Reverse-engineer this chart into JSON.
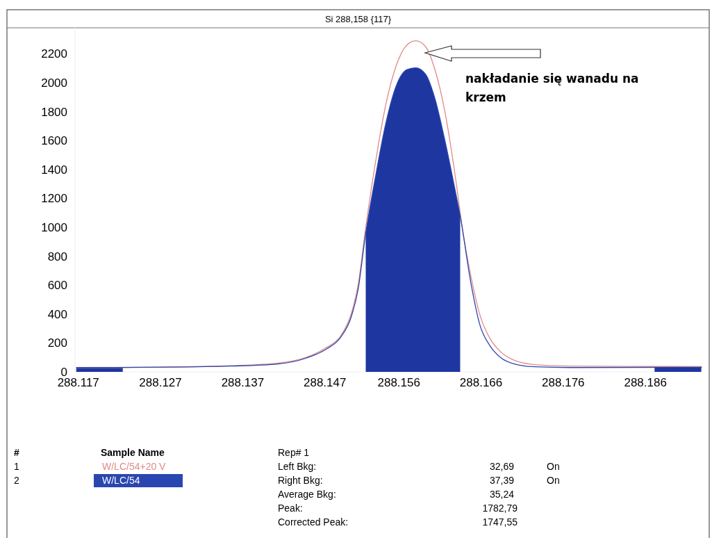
{
  "chart_data": {
    "type": "line",
    "title": "Si 288,158 {117}",
    "xlim": [
      288.1166,
      288.193
    ],
    "ylim": [
      0,
      2380
    ],
    "xticks": [
      288.117,
      288.127,
      288.137,
      288.147,
      288.156,
      288.166,
      288.176,
      288.186
    ],
    "yticks": [
      0,
      200,
      400,
      600,
      800,
      1000,
      1200,
      1400,
      1600,
      1800,
      2000,
      2200
    ],
    "grid": false,
    "legend": "bottom",
    "series": [
      {
        "name": "W/LC/54+20 V",
        "color": "#e08a86",
        "x": [
          288.11675,
          288.12241,
          288.12866,
          288.13542,
          288.14133,
          288.14471,
          288.14724,
          288.14893,
          288.1502,
          288.15104,
          288.15197,
          288.15316,
          288.15442,
          288.15569,
          288.15696,
          288.15805,
          288.15924,
          288.16034,
          288.1616,
          288.16287,
          288.16371,
          288.16481,
          288.16583,
          288.16709,
          288.16836,
          288.17005,
          288.17258,
          288.17681,
          288.18356,
          288.19286
        ],
        "values": [
          28,
          30,
          35,
          42,
          60,
          100,
          170,
          250,
          400,
          600,
          1000,
          1450,
          1850,
          2120,
          2260,
          2290,
          2250,
          2100,
          1800,
          1350,
          1000,
          650,
          400,
          230,
          140,
          80,
          50,
          40,
          38,
          37
        ]
      },
      {
        "name": "W/LC/54",
        "color": "#2a46b0",
        "x": [
          288.11675,
          288.12866,
          288.13542,
          288.14133,
          288.14471,
          288.14724,
          288.14893,
          288.1502,
          288.15104,
          288.15197,
          288.15316,
          288.15442,
          288.15569,
          288.15696,
          288.15805,
          288.15924,
          288.16034,
          288.1616,
          288.16287,
          288.16346,
          288.16481,
          288.16583,
          288.16709,
          288.16836,
          288.17005,
          288.17258,
          288.17681,
          288.19286
        ],
        "values": [
          30,
          33,
          40,
          55,
          95,
          160,
          240,
          380,
          570,
          960,
          1350,
          1720,
          1980,
          2090,
          2103,
          2060,
          1900,
          1600,
          1250,
          1080,
          600,
          330,
          180,
          100,
          55,
          35,
          30,
          32
        ]
      },
      {
        "type": "area",
        "color": "#1e36a0",
        "x": [
          288.15197,
          288.15316,
          288.15442,
          288.15569,
          288.15696,
          288.15805,
          288.15924,
          288.16034,
          288.1616,
          288.16287,
          288.16346
        ],
        "values": [
          960,
          1350,
          1720,
          1980,
          2090,
          2103,
          2060,
          1900,
          1600,
          1250,
          1080
        ]
      },
      {
        "type": "area",
        "color": "#1e36a0",
        "x": [
          288.11675,
          288.12241
        ],
        "values": [
          33,
          33
        ]
      },
      {
        "type": "area",
        "color": "#1e36a0",
        "x": [
          288.18711,
          288.1928
        ],
        "values": [
          37,
          37
        ]
      }
    ],
    "annotations": [
      "nakładanie się wanadu na krzem",
      "#",
      "1",
      "2",
      "Sample Name",
      "Rep# 1",
      "Left Bkg:",
      "Right Bkg:",
      "Average Bkg:",
      "Peak:",
      "Corrected Peak:",
      "32,69",
      "37,39",
      "35,24",
      "1782,79",
      "1747,55",
      "On",
      "On"
    ]
  }
}
